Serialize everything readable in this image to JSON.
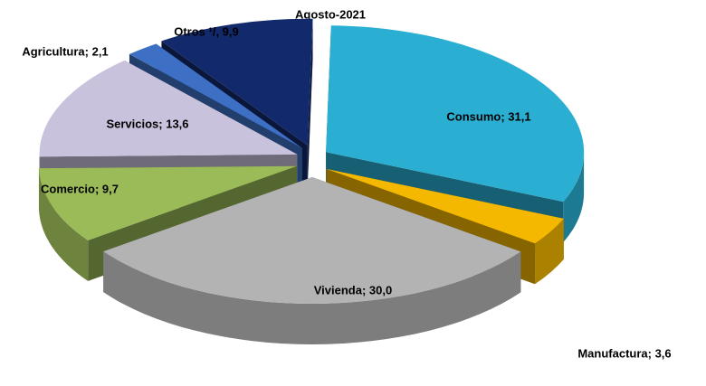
{
  "chart_data": {
    "type": "pie",
    "title": "Agosto-2021",
    "values": [
      31.1,
      3.6,
      30.0,
      9.7,
      13.6,
      2.1,
      9.9
    ],
    "value_labels": [
      "Consumo; 31,1",
      "Manufactura; 3,6",
      "Vivienda; 30,0",
      "Comercio; 9,7",
      "Servicios; 13,6",
      "Agricultura; 2,1",
      "Otros ¹/, 9,9"
    ],
    "colors": [
      "#2aaed2",
      "#f4b800",
      "#b3b3b3",
      "#9bbb59",
      "#c9c2dd",
      "#3d70c4",
      "#12296b"
    ]
  }
}
